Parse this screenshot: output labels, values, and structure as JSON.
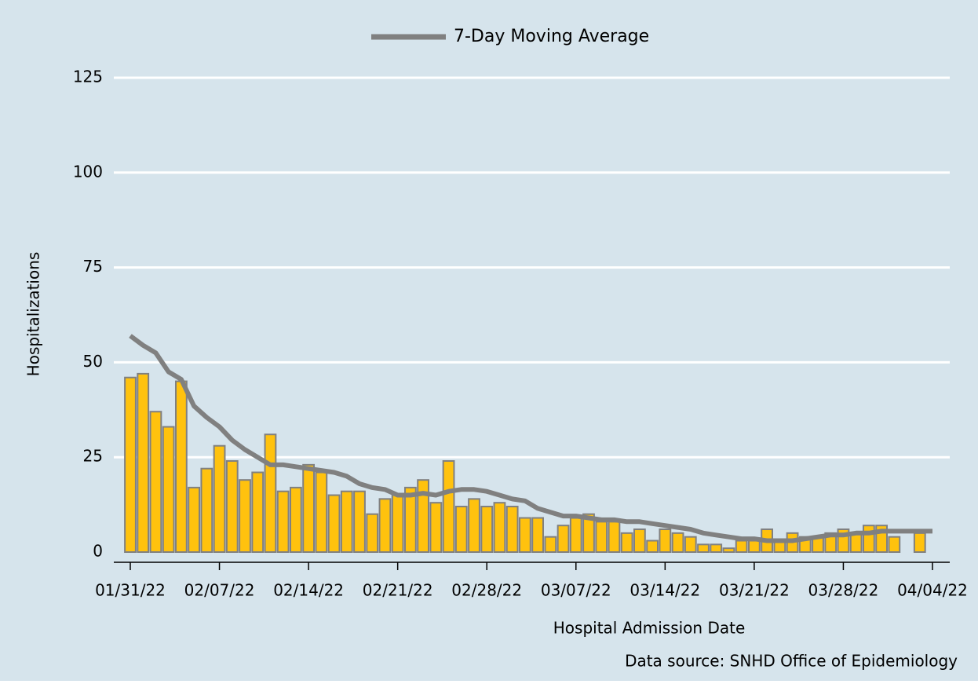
{
  "chart_data": {
    "type": "bar-line",
    "legend_position": "top",
    "x_label": "Hospital Admission Date",
    "y_label": "Hospitalizations",
    "source": "Data source: SNHD Office of Epidemiology",
    "categories": [
      "01/31/22",
      null,
      null,
      null,
      null,
      null,
      null,
      "02/07/22",
      null,
      null,
      null,
      null,
      null,
      null,
      "02/14/22",
      null,
      null,
      null,
      null,
      null,
      null,
      "02/21/22",
      null,
      null,
      null,
      null,
      null,
      null,
      "02/28/22",
      null,
      null,
      null,
      null,
      null,
      null,
      "03/07/22",
      null,
      null,
      null,
      null,
      null,
      null,
      "03/14/22",
      null,
      null,
      null,
      null,
      null,
      null,
      "03/21/22",
      null,
      null,
      null,
      null,
      null,
      null,
      "03/28/22",
      null,
      null,
      null,
      null,
      null,
      null,
      "04/04/22"
    ],
    "bar_color": "#ffc20e",
    "bar_edge_color": "#808080",
    "values": [
      46,
      47,
      37,
      33,
      45,
      17,
      22,
      28,
      24,
      19,
      21,
      31,
      16,
      17,
      23,
      21,
      15,
      16,
      16,
      10,
      14,
      15,
      17,
      19,
      13,
      24,
      12,
      14,
      12,
      13,
      12,
      9,
      9,
      4,
      7,
      9,
      10,
      8,
      8,
      5,
      6,
      3,
      6,
      5,
      4,
      2,
      2,
      1,
      3,
      3,
      6,
      3,
      5,
      4,
      4,
      5,
      6,
      5,
      7,
      7,
      4,
      0,
      5,
      null
    ],
    "series": [
      {
        "name": "7-Day Moving Average",
        "color": "#808080",
        "values": [
          57,
          54.5,
          52.5,
          47.5,
          45.5,
          38.5,
          35.5,
          33,
          29.5,
          27,
          25,
          23,
          23,
          22.5,
          22,
          21.5,
          21,
          20,
          18,
          17,
          16.5,
          15,
          15,
          15.5,
          15,
          16,
          16.5,
          16.5,
          16,
          15,
          14,
          13.5,
          11.5,
          10.5,
          9.5,
          9.5,
          9,
          8.5,
          8.5,
          8,
          8,
          7.5,
          7,
          6.5,
          6,
          5,
          4.5,
          4,
          3.5,
          3.5,
          3,
          3,
          3,
          3.5,
          4,
          4.5,
          4.5,
          5,
          5,
          5.5,
          5.5,
          5.5,
          5.5,
          5.5
        ]
      }
    ],
    "ylim": [
      0,
      125
    ],
    "yticks": [
      0,
      25,
      50,
      75,
      100,
      125
    ],
    "grid": true
  }
}
